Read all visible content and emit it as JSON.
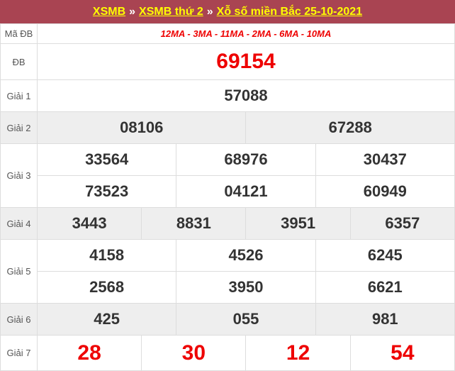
{
  "header": {
    "links": [
      "XSMB",
      "XSMB thứ 2",
      "Xỗ số miền Bắc 25-10-2021"
    ],
    "separator": "»"
  },
  "colors": {
    "header_bg": "#a94452",
    "link": "#ffff00",
    "red": "#e00000",
    "gray_row": "#eeeeee"
  },
  "ma_db": {
    "label": "Mã ĐB",
    "value": "12MA - 3MA - 11MA - 2MA - 6MA - 10MA"
  },
  "prizes": [
    {
      "label": "ĐB",
      "numbers": [
        "69154"
      ]
    },
    {
      "label": "Giải 1",
      "numbers": [
        "57088"
      ]
    },
    {
      "label": "Giải 2",
      "numbers": [
        "08106",
        "67288"
      ]
    },
    {
      "label": "Giải 3",
      "numbers": [
        "33564",
        "68976",
        "30437",
        "73523",
        "04121",
        "60949"
      ]
    },
    {
      "label": "Giải 4",
      "numbers": [
        "3443",
        "8831",
        "3951",
        "6357"
      ]
    },
    {
      "label": "Giải 5",
      "numbers": [
        "4158",
        "4526",
        "6245",
        "2568",
        "3950",
        "6621"
      ]
    },
    {
      "label": "Giải 6",
      "numbers": [
        "425",
        "055",
        "981"
      ]
    },
    {
      "label": "Giải 7",
      "numbers": [
        "28",
        "30",
        "12",
        "54"
      ]
    }
  ]
}
